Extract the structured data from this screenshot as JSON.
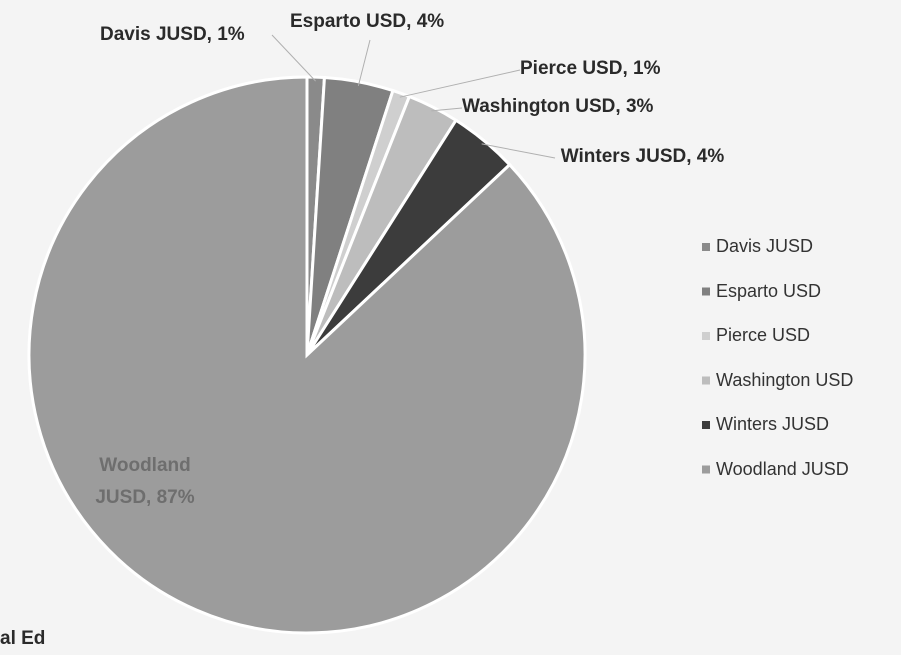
{
  "chart_data": {
    "type": "pie",
    "categories": [
      "Davis JUSD",
      "Esparto USD",
      "Pierce USD",
      "Washington USD",
      "Winters JUSD",
      "Woodland JUSD"
    ],
    "values": [
      1,
      4,
      1,
      3,
      4,
      87
    ],
    "value_labels": [
      "Davis JUSD, 1%",
      "Esparto USD, 4%",
      "Pierce USD, 1%",
      "Washington USD, 3%",
      "Winters JUSD, 4%",
      "Woodland JUSD, 87%"
    ],
    "colors": [
      "#8a8a8a",
      "#808080",
      "#cfcfcf",
      "#bdbdbd",
      "#3c3c3c",
      "#9c9c9c"
    ],
    "legend": "right",
    "annotation": "al Ed"
  }
}
